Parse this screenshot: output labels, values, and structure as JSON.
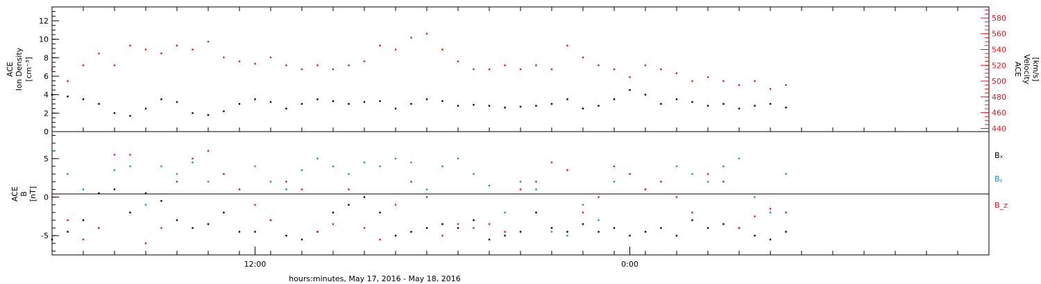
{
  "colors": {
    "black": "#000000",
    "red": "#e8141b",
    "blue": "#1a8ad4"
  },
  "xaxis": {
    "label": "hours:minutes, May 17, 2016 - May 18, 2016",
    "range_hours": [
      0,
      30
    ],
    "major_ticks": [
      {
        "hour": 6.5,
        "label": "12:00"
      },
      {
        "hour": 18.5,
        "label": "0:00"
      }
    ]
  },
  "chart_data": [
    {
      "type": "scatter",
      "panel": "top",
      "ylabel_lines": [
        "ACE",
        "Ion Density",
        "[cm⁻³]"
      ],
      "ylim": [
        0,
        13.5
      ],
      "yticks": [
        0,
        2,
        4,
        6,
        8,
        10,
        12
      ],
      "right_axis": {
        "ylabel_lines": [
          "ACE",
          "Velocity",
          "[km/s]"
        ],
        "ylim": [
          436,
          594
        ],
        "yticks": [
          440,
          460,
          480,
          500,
          520,
          540,
          560,
          580
        ],
        "color": "#e8141b"
      },
      "series": [
        {
          "key": "density",
          "axis": "left",
          "color": "#000000",
          "x": [
            0.0,
            0.5,
            1.0,
            1.5,
            2.0,
            2.5,
            3.0,
            3.5,
            4.0,
            4.5,
            5.0,
            5.5,
            6.0,
            6.5,
            7.0,
            7.5,
            8.0,
            8.5,
            9.0,
            9.5,
            10.0,
            10.5,
            11.0,
            11.5,
            12.0,
            12.5,
            13.0,
            13.5,
            14.0,
            14.5,
            15.0,
            15.5,
            16.0,
            16.5,
            17.0,
            17.5,
            18.0,
            18.5,
            19.0,
            19.5,
            20.0,
            20.5,
            21.0,
            21.5,
            22.0,
            22.5,
            23.0,
            23.5
          ],
          "y": [
            4.0,
            3.8,
            3.5,
            3.0,
            2.0,
            1.7,
            2.5,
            3.5,
            3.2,
            2.0,
            1.8,
            2.2,
            3.0,
            3.5,
            3.2,
            2.5,
            3.0,
            3.5,
            3.3,
            3.0,
            3.2,
            3.3,
            2.5,
            3.0,
            3.5,
            3.3,
            2.8,
            2.9,
            2.8,
            2.6,
            2.7,
            2.8,
            3.0,
            3.5,
            2.5,
            2.8,
            3.5,
            4.5,
            4.0,
            3.0,
            3.5,
            3.2,
            2.8,
            3.0,
            2.5,
            2.8,
            3.0,
            2.6
          ]
        },
        {
          "key": "velocity",
          "axis": "right",
          "color": "#e8141b",
          "x": [
            0.0,
            0.5,
            1.0,
            1.5,
            2.0,
            2.5,
            3.0,
            3.5,
            4.0,
            4.5,
            5.0,
            5.5,
            6.0,
            6.5,
            7.0,
            7.5,
            8.0,
            8.5,
            9.0,
            9.5,
            10.0,
            10.5,
            11.0,
            11.5,
            12.0,
            12.5,
            13.0,
            13.5,
            14.0,
            14.5,
            15.0,
            15.5,
            16.0,
            16.5,
            17.0,
            17.5,
            18.0,
            18.5,
            19.0,
            19.5,
            20.0,
            20.5,
            21.0,
            21.5,
            22.0,
            22.5,
            23.0,
            23.5
          ],
          "y": [
            515,
            500,
            520,
            535,
            520,
            545,
            540,
            535,
            545,
            540,
            550,
            530,
            525,
            522,
            530,
            520,
            515,
            520,
            515,
            520,
            525,
            545,
            540,
            555,
            560,
            540,
            525,
            515,
            515,
            520,
            515,
            520,
            515,
            545,
            530,
            520,
            515,
            505,
            520,
            515,
            510,
            500,
            505,
            500,
            495,
            500,
            490,
            495
          ]
        }
      ]
    },
    {
      "type": "scatter",
      "panel": "bottom",
      "ylabel_lines": [
        "ACE",
        "B",
        "[nT]"
      ],
      "ylim": [
        -7.5,
        8.5
      ],
      "yticks": [
        -5,
        0,
        5
      ],
      "zero_line": true,
      "legend": [
        {
          "label": "Bₓ",
          "color": "#000000"
        },
        {
          "label": "Bᵧ",
          "color": "#1a8ad4"
        },
        {
          "label": "B_z",
          "color": "#e8141b"
        }
      ],
      "series": [
        {
          "key": "Bx",
          "color": "#000000",
          "x": [
            0.0,
            0.5,
            1.0,
            1.5,
            2.0,
            2.5,
            3.0,
            3.5,
            4.0,
            4.5,
            5.0,
            5.5,
            6.0,
            6.5,
            7.0,
            7.5,
            8.0,
            8.5,
            9.0,
            9.5,
            10.0,
            10.5,
            11.0,
            11.5,
            12.0,
            12.5,
            13.0,
            13.5,
            14.0,
            14.5,
            15.0,
            15.5,
            16.0,
            16.5,
            17.0,
            17.5,
            18.0,
            18.5,
            19.0,
            19.5,
            20.0,
            20.5,
            21.0,
            21.5,
            22.0,
            22.5,
            23.0,
            23.5
          ],
          "y": [
            -5.5,
            -4.5,
            -3.0,
            0.5,
            1.0,
            -2.0,
            0.5,
            -0.5,
            -3.0,
            -4.0,
            -3.5,
            -2.0,
            -4.5,
            -4.5,
            -3.0,
            -5.0,
            -5.5,
            -4.5,
            -2.0,
            -1.0,
            0.0,
            -2.0,
            -5.0,
            -4.5,
            -4.0,
            -3.5,
            -4.0,
            -3.0,
            -5.5,
            -5.0,
            -4.5,
            -2.0,
            -4.0,
            -4.5,
            -3.5,
            -4.5,
            -4.0,
            -5.0,
            -4.5,
            -4.0,
            -5.0,
            -3.0,
            -4.0,
            -3.5,
            -4.0,
            -5.0,
            -5.5,
            -4.5
          ]
        },
        {
          "key": "By",
          "color": "#1a8ad4",
          "x": [
            0.0,
            0.5,
            1.0,
            1.5,
            2.0,
            2.5,
            3.0,
            3.5,
            4.0,
            4.5,
            5.0,
            5.5,
            6.0,
            6.5,
            7.0,
            7.5,
            8.0,
            8.5,
            9.0,
            9.5,
            10.0,
            10.5,
            11.0,
            11.5,
            12.0,
            12.5,
            13.0,
            13.5,
            14.0,
            14.5,
            15.0,
            15.5,
            16.0,
            16.5,
            17.0,
            17.5,
            18.0,
            18.5,
            19.0,
            19.5,
            20.0,
            20.5,
            21.0,
            21.5,
            22.0,
            22.5,
            23.0,
            23.5
          ],
          "y": [
            6.0,
            3.0,
            1.0,
            -4.0,
            3.5,
            4.0,
            -1.0,
            4.0,
            3.0,
            4.5,
            2.0,
            3.0,
            1.0,
            4.0,
            2.0,
            1.0,
            3.5,
            5.0,
            4.0,
            3.0,
            4.5,
            4.0,
            5.0,
            4.5,
            1.0,
            4.0,
            5.0,
            3.0,
            1.5,
            -2.0,
            2.0,
            1.0,
            -4.5,
            -5.0,
            -1.0,
            -3.0,
            2.0,
            3.0,
            1.0,
            2.0,
            4.0,
            3.0,
            2.0,
            4.0,
            5.0,
            0.0,
            -2.0,
            3.0
          ]
        },
        {
          "key": "Bz",
          "color": "#e8141b",
          "x": [
            0.0,
            0.5,
            1.0,
            1.5,
            2.0,
            2.5,
            3.0,
            3.5,
            4.0,
            4.5,
            5.0,
            5.5,
            6.0,
            6.5,
            7.0,
            7.5,
            8.0,
            8.5,
            9.0,
            9.5,
            10.0,
            10.5,
            11.0,
            11.5,
            12.0,
            12.5,
            13.0,
            13.5,
            14.0,
            14.5,
            15.0,
            15.5,
            16.0,
            16.5,
            17.0,
            17.5,
            18.0,
            18.5,
            19.0,
            19.5,
            20.0,
            20.5,
            21.0,
            21.5,
            22.0,
            22.5,
            23.0,
            23.5
          ],
          "y": [
            0.0,
            -3.0,
            -5.5,
            -4.0,
            5.5,
            5.5,
            -6.0,
            -4.0,
            2.0,
            5.0,
            6.0,
            3.0,
            1.0,
            -1.0,
            -3.0,
            2.0,
            1.0,
            -4.5,
            -3.5,
            1.0,
            -4.0,
            -5.5,
            -1.0,
            2.0,
            0.0,
            -5.0,
            -3.5,
            -4.0,
            -3.5,
            -4.5,
            1.0,
            2.0,
            4.5,
            3.5,
            -2.0,
            0.0,
            4.0,
            3.0,
            1.0,
            2.0,
            0.0,
            -2.0,
            3.0,
            2.0,
            -4.0,
            -2.5,
            -1.5,
            -2.0
          ]
        }
      ]
    }
  ]
}
